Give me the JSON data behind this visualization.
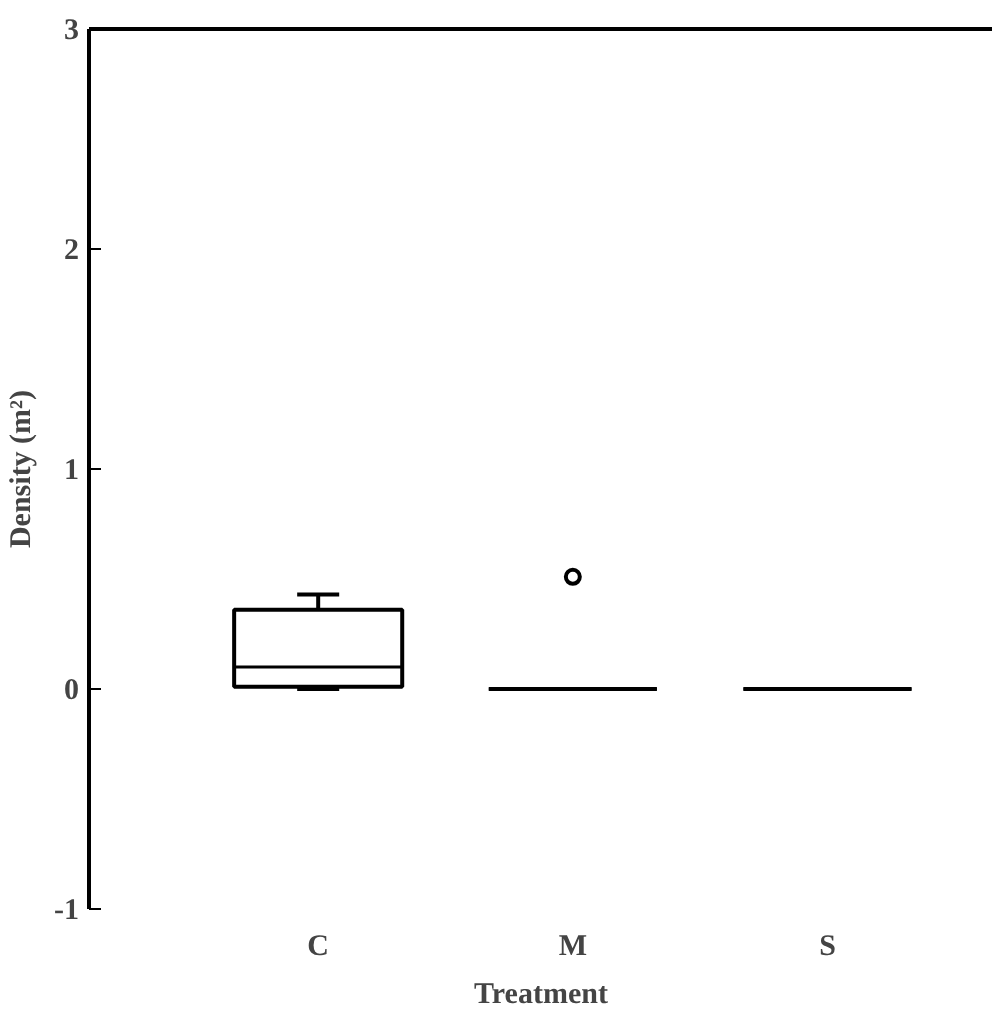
{
  "chart_data": {
    "type": "box",
    "categories": [
      "C",
      "M",
      "S"
    ],
    "boxes": [
      {
        "low": 0,
        "q1": 0.01,
        "median": 0.1,
        "q3": 0.36,
        "high": 0.43
      },
      {
        "low": 0,
        "q1": 0,
        "median": 0,
        "q3": 0,
        "high": 0,
        "outliers": [
          0.51
        ]
      },
      {
        "low": 0,
        "q1": 0,
        "median": 0,
        "q3": 0,
        "high": 0
      }
    ],
    "xlabel": "Treatment",
    "ylabel": "Density (m²)",
    "ylim": [
      -1,
      3
    ],
    "yticks": [
      -1,
      0,
      1,
      2,
      3
    ],
    "grid": false,
    "color": "#000000"
  }
}
